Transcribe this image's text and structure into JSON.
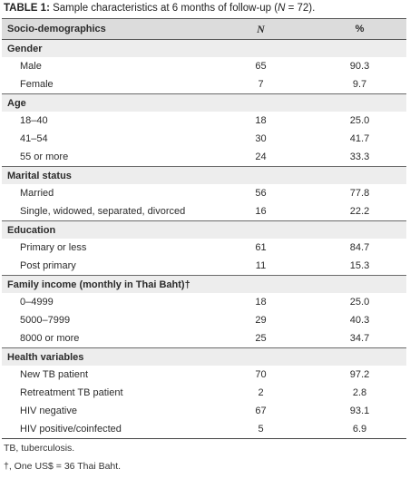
{
  "caption": {
    "label": "TABLE 1:",
    "text_before": " Sample characteristics at 6 months of follow-up (",
    "n_symbol": "N",
    "text_after": " = 72)."
  },
  "header": {
    "col1": "Socio-demographics",
    "col2": "N",
    "col3": "%"
  },
  "groups": [
    {
      "title": "Gender",
      "rows": [
        {
          "label": "Male",
          "n": "65",
          "pct": "90.3"
        },
        {
          "label": "Female",
          "n": "7",
          "pct": "9.7"
        }
      ]
    },
    {
      "title": "Age",
      "rows": [
        {
          "label": "18–40",
          "n": "18",
          "pct": "25.0"
        },
        {
          "label": "41–54",
          "n": "30",
          "pct": "41.7"
        },
        {
          "label": "55 or more",
          "n": "24",
          "pct": "33.3"
        }
      ]
    },
    {
      "title": "Marital status",
      "rows": [
        {
          "label": "Married",
          "n": "56",
          "pct": "77.8"
        },
        {
          "label": "Single, widowed, separated, divorced",
          "n": "16",
          "pct": "22.2"
        }
      ]
    },
    {
      "title": "Education",
      "rows": [
        {
          "label": "Primary or less",
          "n": "61",
          "pct": "84.7"
        },
        {
          "label": "Post primary",
          "n": "11",
          "pct": "15.3"
        }
      ]
    },
    {
      "title": "Family income (monthly in Thai Baht)†",
      "rows": [
        {
          "label": "0–4999",
          "n": "18",
          "pct": "25.0"
        },
        {
          "label": "5000–7999",
          "n": "29",
          "pct": "40.3"
        },
        {
          "label": "8000 or more",
          "n": "25",
          "pct": "34.7"
        }
      ]
    },
    {
      "title": "Health variables",
      "rows": [
        {
          "label": "New TB patient",
          "n": "70",
          "pct": "97.2"
        },
        {
          "label": "Retreatment TB patient",
          "n": "2",
          "pct": "2.8"
        },
        {
          "label": "HIV negative",
          "n": "67",
          "pct": "93.1"
        },
        {
          "label": "HIV positive/coinfected",
          "n": "5",
          "pct": "6.9"
        }
      ]
    }
  ],
  "footnotes": [
    "TB, tuberculosis.",
    "†, One US$ = 36 Thai Baht."
  ]
}
